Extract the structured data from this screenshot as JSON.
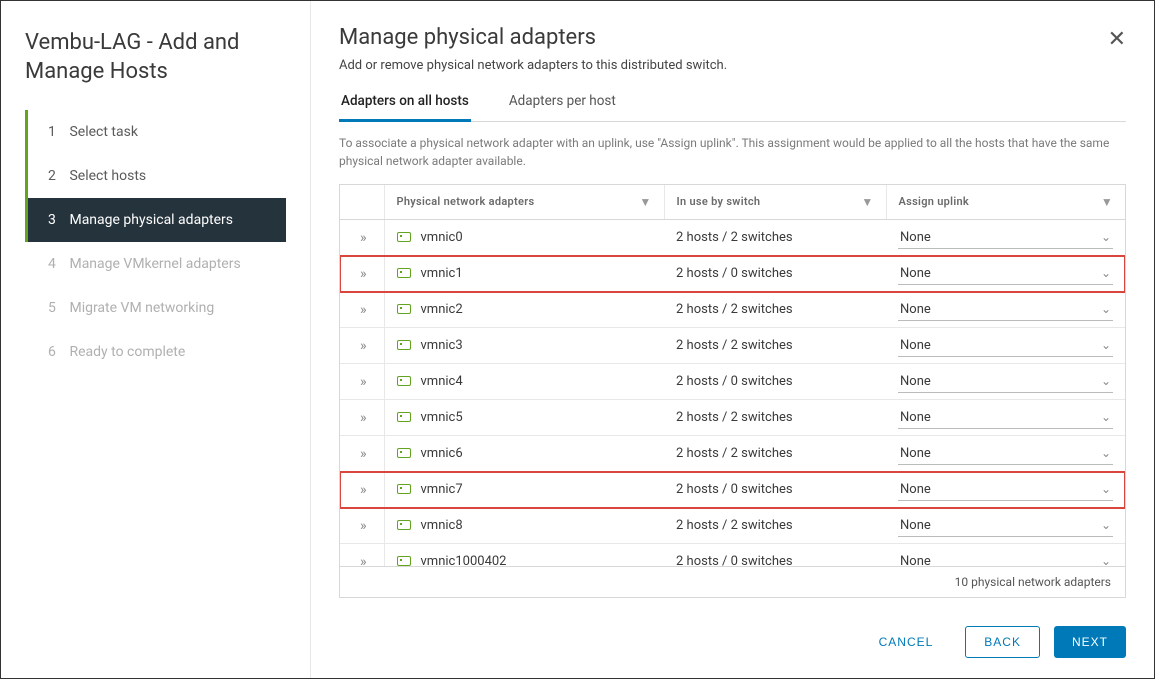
{
  "dialog_title": "Vembu-LAG - Add and Manage Hosts",
  "steps": [
    {
      "num": "1",
      "label": "Select task",
      "state": "completed"
    },
    {
      "num": "2",
      "label": "Select hosts",
      "state": "completed"
    },
    {
      "num": "3",
      "label": "Manage physical adapters",
      "state": "active"
    },
    {
      "num": "4",
      "label": "Manage VMkernel adapters",
      "state": "disabled"
    },
    {
      "num": "5",
      "label": "Migrate VM networking",
      "state": "disabled"
    },
    {
      "num": "6",
      "label": "Ready to complete",
      "state": "disabled"
    }
  ],
  "main": {
    "title": "Manage physical adapters",
    "description": "Add or remove physical network adapters to this distributed switch.",
    "tabs": [
      {
        "label": "Adapters on all hosts",
        "active": true
      },
      {
        "label": "Adapters per host",
        "active": false
      }
    ],
    "hint": "To associate a physical network adapter with an uplink, use \"Assign uplink\". This assignment would be applied to all the hosts that have the same physical network adapter available."
  },
  "table": {
    "columns": {
      "adapter": "Physical network adapters",
      "inuse": "In use by switch",
      "uplink": "Assign uplink"
    },
    "rows": [
      {
        "name": "vmnic0",
        "inuse": "2 hosts / 2 switches",
        "uplink": "None",
        "highlight": false
      },
      {
        "name": "vmnic1",
        "inuse": "2 hosts / 0 switches",
        "uplink": "None",
        "highlight": true
      },
      {
        "name": "vmnic2",
        "inuse": "2 hosts / 2 switches",
        "uplink": "None",
        "highlight": false
      },
      {
        "name": "vmnic3",
        "inuse": "2 hosts / 2 switches",
        "uplink": "None",
        "highlight": false
      },
      {
        "name": "vmnic4",
        "inuse": "2 hosts / 0 switches",
        "uplink": "None",
        "highlight": false
      },
      {
        "name": "vmnic5",
        "inuse": "2 hosts / 2 switches",
        "uplink": "None",
        "highlight": false
      },
      {
        "name": "vmnic6",
        "inuse": "2 hosts / 2 switches",
        "uplink": "None",
        "highlight": false
      },
      {
        "name": "vmnic7",
        "inuse": "2 hosts / 0 switches",
        "uplink": "None",
        "highlight": true
      },
      {
        "name": "vmnic8",
        "inuse": "2 hosts / 2 switches",
        "uplink": "None",
        "highlight": false
      },
      {
        "name": "vmnic1000402",
        "inuse": "2 hosts / 0 switches",
        "uplink": "None",
        "highlight": false
      }
    ],
    "footer": "10 physical network adapters"
  },
  "buttons": {
    "cancel": "CANCEL",
    "back": "BACK",
    "next": "NEXT"
  },
  "colors": {
    "accent_blue": "#0079b8",
    "step_green": "#62a420",
    "active_step_bg": "#25333c",
    "highlight_red": "#d9463d",
    "border_gray": "#d8d8d8"
  }
}
